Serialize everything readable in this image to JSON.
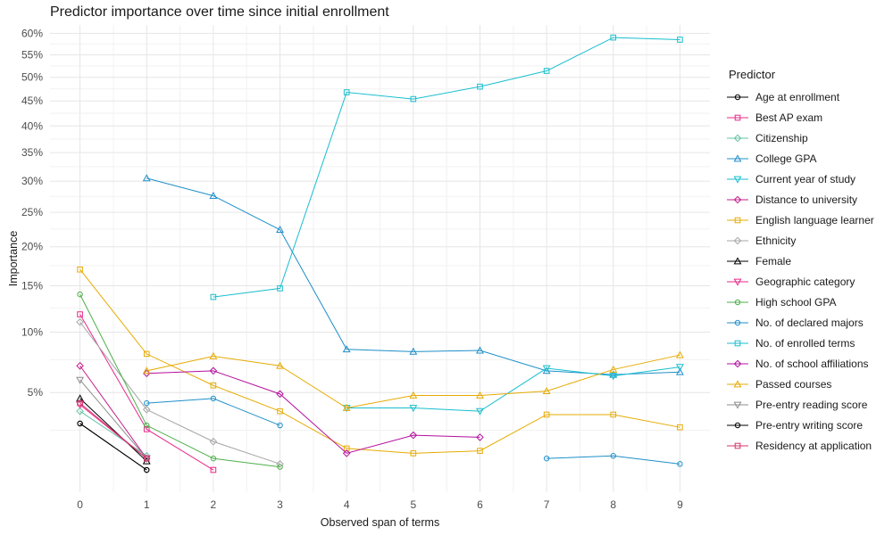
{
  "chart_data": {
    "type": "line",
    "title": "Predictor importance over time since initial enrollment",
    "xlabel": "Observed span of terms",
    "ylabel": "Importance",
    "legend_title": "Predictor",
    "legend_position": "right",
    "grid": true,
    "y_scale": "sqrt",
    "x_ticks": [
      0,
      1,
      2,
      3,
      4,
      5,
      6,
      7,
      8,
      9
    ],
    "y_ticks": [
      5,
      10,
      15,
      20,
      25,
      30,
      35,
      40,
      45,
      50,
      55,
      60
    ],
    "y_tick_labels": [
      "5%",
      "10%",
      "15%",
      "20%",
      "25%",
      "30%",
      "35%",
      "40%",
      "45%",
      "50%",
      "55%",
      "60%"
    ],
    "xlim": [
      -0.45,
      9.45
    ],
    "ylim": [
      0.5,
      62
    ],
    "series": [
      {
        "name": "Age at enrollment",
        "color": "#000000",
        "shape": "circle",
        "points": [
          [
            0,
            3.1
          ],
          [
            1,
            1.1
          ]
        ]
      },
      {
        "name": "Best AP exam",
        "color": "#E7298A",
        "shape": "square",
        "points": [
          [
            0,
            11.8
          ],
          [
            1,
            2.8
          ],
          [
            2,
            1.1
          ]
        ]
      },
      {
        "name": "Citizenship",
        "color": "#66C2A5",
        "shape": "diamond",
        "points": [
          [
            0,
            3.8
          ],
          [
            1,
            1.6
          ]
        ]
      },
      {
        "name": "College GPA",
        "color": "#1F8FC9",
        "shape": "triangle",
        "points": [
          [
            1,
            30.5
          ],
          [
            2,
            27.6
          ],
          [
            3,
            22.4
          ],
          [
            4,
            8.4
          ],
          [
            5,
            8.2
          ],
          [
            6,
            8.3
          ],
          [
            7,
            6.6
          ],
          [
            8,
            6.3
          ],
          [
            9,
            6.5
          ]
        ]
      },
      {
        "name": "Current year of study",
        "color": "#17BECF",
        "shape": "triangle-down",
        "points": [
          [
            4,
            4.0
          ],
          [
            5,
            4.0
          ],
          [
            6,
            3.8
          ],
          [
            7,
            6.8
          ],
          [
            8,
            6.2
          ],
          [
            9,
            6.9
          ]
        ]
      },
      {
        "name": "Distance to university",
        "color": "#C51B8A",
        "shape": "diamond",
        "points": [
          [
            0,
            7.0
          ],
          [
            1,
            1.5
          ]
        ]
      },
      {
        "name": "English language learner",
        "color": "#E6AB02",
        "shape": "square",
        "points": [
          [
            0,
            17.0
          ],
          [
            1,
            8.0
          ],
          [
            2,
            5.5
          ],
          [
            3,
            3.8
          ],
          [
            4,
            1.9
          ],
          [
            5,
            1.7
          ],
          [
            6,
            1.8
          ],
          [
            7,
            3.6
          ],
          [
            8,
            3.6
          ],
          [
            9,
            2.9
          ]
        ]
      },
      {
        "name": "Ethnicity",
        "color": "#A6A6A6",
        "shape": "diamond",
        "points": [
          [
            0,
            11.0
          ],
          [
            1,
            3.9
          ],
          [
            2,
            2.2
          ],
          [
            3,
            1.3
          ]
        ]
      },
      {
        "name": "Female",
        "color": "#000000",
        "shape": "triangle",
        "points": [
          [
            0,
            4.6
          ],
          [
            1,
            1.4
          ]
        ]
      },
      {
        "name": "Geographic category",
        "color": "#E7298A",
        "shape": "triangle-down",
        "points": [
          [
            0,
            4.2
          ],
          [
            1,
            1.5
          ]
        ]
      },
      {
        "name": "High school GPA",
        "color": "#4DAF4A",
        "shape": "circle",
        "points": [
          [
            0,
            14.0
          ],
          [
            1,
            3.0
          ],
          [
            2,
            1.5
          ],
          [
            3,
            1.2
          ]
        ]
      },
      {
        "name": "No. of declared majors",
        "color": "#1F8FC9",
        "shape": "circle",
        "points": [
          [
            1,
            4.3
          ],
          [
            2,
            4.6
          ],
          [
            3,
            3.0
          ],
          [
            7,
            1.5
          ],
          [
            8,
            1.6
          ],
          [
            9,
            1.3
          ]
        ]
      },
      {
        "name": "No. of enrolled terms",
        "color": "#17BECF",
        "shape": "square",
        "points": [
          [
            2,
            13.7
          ],
          [
            3,
            14.7
          ],
          [
            4,
            46.8
          ],
          [
            5,
            45.4
          ],
          [
            6,
            48.0
          ],
          [
            7,
            51.4
          ],
          [
            8,
            59.0
          ],
          [
            9,
            58.5
          ]
        ]
      },
      {
        "name": "No. of school affiliations",
        "color": "#B40F9E",
        "shape": "diamond",
        "points": [
          [
            1,
            6.4
          ],
          [
            2,
            6.6
          ],
          [
            3,
            4.9
          ],
          [
            4,
            1.7
          ],
          [
            5,
            2.5
          ],
          [
            6,
            2.4
          ]
        ]
      },
      {
        "name": "Passed courses",
        "color": "#E6AB02",
        "shape": "triangle",
        "points": [
          [
            1,
            6.6
          ],
          [
            2,
            7.8
          ],
          [
            3,
            7.0
          ],
          [
            4,
            4.0
          ],
          [
            5,
            4.8
          ],
          [
            6,
            4.8
          ],
          [
            7,
            5.1
          ],
          [
            8,
            6.7
          ],
          [
            9,
            7.9
          ]
        ]
      },
      {
        "name": "Pre-entry reading score",
        "color": "#8C8C8C",
        "shape": "triangle-down",
        "points": [
          [
            0,
            5.9
          ],
          [
            1,
            1.5
          ]
        ]
      },
      {
        "name": "Pre-entry writing score",
        "color": "#000000",
        "shape": "circle",
        "points": [
          [
            0,
            3.1
          ],
          [
            1,
            1.1
          ]
        ]
      },
      {
        "name": "Residency at application",
        "color": "#D6336C",
        "shape": "square",
        "points": [
          [
            0,
            4.3
          ],
          [
            1,
            1.5
          ]
        ]
      }
    ]
  }
}
